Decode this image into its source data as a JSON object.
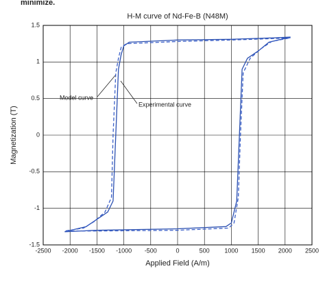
{
  "header_text": "minimize.",
  "chart_data": {
    "type": "line",
    "title": "H-M curve of Nd-Fe-B (N48M)",
    "x_label": "Applied Field (A/m)",
    "y_label": "Magnetization (T)",
    "xlim": [
      -2500,
      2500
    ],
    "xticks": [
      -2500,
      -2000,
      -1500,
      -1000,
      -500,
      0,
      500,
      1000,
      1500,
      2000,
      2500
    ],
    "ylim": [
      -1.5,
      1.5
    ],
    "yticks": [
      -1.5,
      -1,
      -0.5,
      0,
      0.5,
      1,
      1.5
    ],
    "grid": true,
    "series": [
      {
        "name": "Model curve",
        "color": "#2a4fb0",
        "line_style": "solid",
        "x": [
          2100,
          1800,
          1000,
          0,
          -900,
          -1000,
          -1050,
          -1100,
          -1150,
          -1200,
          -1300,
          -1500,
          -1700,
          -2100,
          -1500,
          0,
          900,
          1000,
          1100,
          1150,
          1200,
          1300,
          1500,
          1700,
          2100
        ],
        "values": [
          1.34,
          1.33,
          1.31,
          1.3,
          1.27,
          1.22,
          1.1,
          0.9,
          0,
          -0.9,
          -1.05,
          -1.15,
          -1.25,
          -1.32,
          -1.3,
          -1.28,
          -1.25,
          -1.2,
          -0.9,
          0,
          0.9,
          1.05,
          1.15,
          1.27,
          1.34
        ]
      },
      {
        "name": "Experimental curve",
        "color": "#3a5fc8",
        "line_style": "dashed",
        "x": [
          2100,
          1800,
          1000,
          0,
          -950,
          -1050,
          -1100,
          -1150,
          -1200,
          -1230,
          -1350,
          -1550,
          -1750,
          -2100,
          -1500,
          0,
          950,
          1050,
          1130,
          1170,
          1220,
          1350,
          1550,
          1750,
          2100
        ],
        "values": [
          1.33,
          1.32,
          1.3,
          1.28,
          1.25,
          1.2,
          1.05,
          0.85,
          0,
          -0.85,
          -1.05,
          -1.18,
          -1.27,
          -1.31,
          -1.31,
          -1.3,
          -1.27,
          -1.2,
          -0.85,
          0,
          0.85,
          1.05,
          1.18,
          1.28,
          1.33
        ]
      }
    ]
  }
}
